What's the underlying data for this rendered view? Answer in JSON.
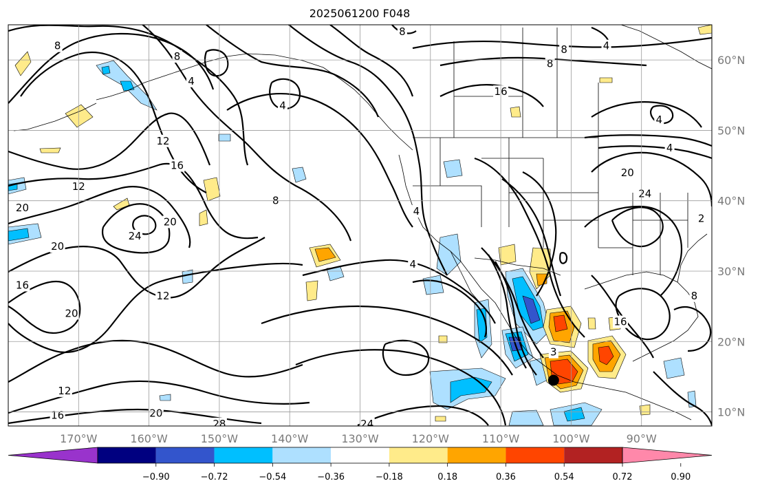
{
  "title": "2025061200 F048",
  "map": {
    "lon_range": [
      -180,
      -80
    ],
    "lat_range": [
      8,
      65
    ],
    "lat_ticks": [
      {
        "value": 60,
        "label": "60°N"
      },
      {
        "value": 50,
        "label": "50°N"
      },
      {
        "value": 40,
        "label": "40°N"
      },
      {
        "value": 30,
        "label": "30°N"
      },
      {
        "value": 20,
        "label": "20°N"
      },
      {
        "value": 10,
        "label": "10°N"
      }
    ],
    "lon_ticks": [
      {
        "value": -170,
        "label": "170°W"
      },
      {
        "value": -160,
        "label": "160°W"
      },
      {
        "value": -150,
        "label": "150°W"
      },
      {
        "value": -140,
        "label": "140°W"
      },
      {
        "value": -130,
        "label": "130°W"
      },
      {
        "value": -120,
        "label": "120°W"
      },
      {
        "value": -110,
        "label": "110°W"
      },
      {
        "value": -100,
        "label": "100°W"
      },
      {
        "value": -90,
        "label": "90°W"
      }
    ],
    "gridlines": true,
    "marker": {
      "lon": -102.5,
      "lat": 14.5,
      "color": "#000000"
    },
    "contour_labels": [
      {
        "text": "8",
        "lon": -173,
        "lat": 62
      },
      {
        "text": "8",
        "lon": -156,
        "lat": 60.5
      },
      {
        "text": "4",
        "lon": -154,
        "lat": 57
      },
      {
        "text": "12",
        "lon": -170,
        "lat": 42
      },
      {
        "text": "12",
        "lon": -158,
        "lat": 48.5
      },
      {
        "text": "16",
        "lon": -156,
        "lat": 45
      },
      {
        "text": "24",
        "lon": -162,
        "lat": 35
      },
      {
        "text": "20",
        "lon": -157,
        "lat": 37
      },
      {
        "text": "20",
        "lon": -178,
        "lat": 39
      },
      {
        "text": "20",
        "lon": -173,
        "lat": 33.5
      },
      {
        "text": "16",
        "lon": -178,
        "lat": 28
      },
      {
        "text": "20",
        "lon": -171,
        "lat": 24
      },
      {
        "text": "12",
        "lon": -158,
        "lat": 26.5
      },
      {
        "text": "12",
        "lon": -172,
        "lat": 13
      },
      {
        "text": "16",
        "lon": -173,
        "lat": 9.5
      },
      {
        "text": "20",
        "lon": -159,
        "lat": 9.8
      },
      {
        "text": "28",
        "lon": -150,
        "lat": 8.3
      },
      {
        "text": "24",
        "lon": -129,
        "lat": 8.3
      },
      {
        "text": "8",
        "lon": -142,
        "lat": 40
      },
      {
        "text": "4",
        "lon": -141,
        "lat": 53.5
      },
      {
        "text": "8",
        "lon": -124,
        "lat": 64
      },
      {
        "text": "4",
        "lon": -122,
        "lat": 38.5
      },
      {
        "text": "4",
        "lon": -122.5,
        "lat": 31
      },
      {
        "text": "8",
        "lon": -101,
        "lat": 61.5
      },
      {
        "text": "8",
        "lon": -103,
        "lat": 59.5
      },
      {
        "text": "4",
        "lon": -95,
        "lat": 62
      },
      {
        "text": "16",
        "lon": -110,
        "lat": 55.5
      },
      {
        "text": "4",
        "lon": -87.5,
        "lat": 51.5
      },
      {
        "text": "4",
        "lon": -86,
        "lat": 47.5
      },
      {
        "text": "20",
        "lon": -92,
        "lat": 44
      },
      {
        "text": "24",
        "lon": -89.5,
        "lat": 41
      },
      {
        "text": "2",
        "lon": -81.5,
        "lat": 37.5
      },
      {
        "text": "8",
        "lon": -82.5,
        "lat": 26.5
      },
      {
        "text": "16",
        "lon": -93,
        "lat": 22.8
      },
      {
        "text": "3",
        "lon": -102.5,
        "lat": 18.5
      }
    ]
  },
  "colorbar": {
    "ticks": [
      "−0.90",
      "−0.72",
      "−0.54",
      "−0.36",
      "−0.18",
      "0.18",
      "0.36",
      "0.54",
      "0.72",
      "0.90"
    ],
    "colors": [
      "#9933cc",
      "#000080",
      "#3355cc",
      "#00bfff",
      "#aee0ff",
      "#ffffff",
      "#ffeb8a",
      "#ffa500",
      "#ff4500",
      "#b22222",
      "#ff88aa"
    ]
  }
}
